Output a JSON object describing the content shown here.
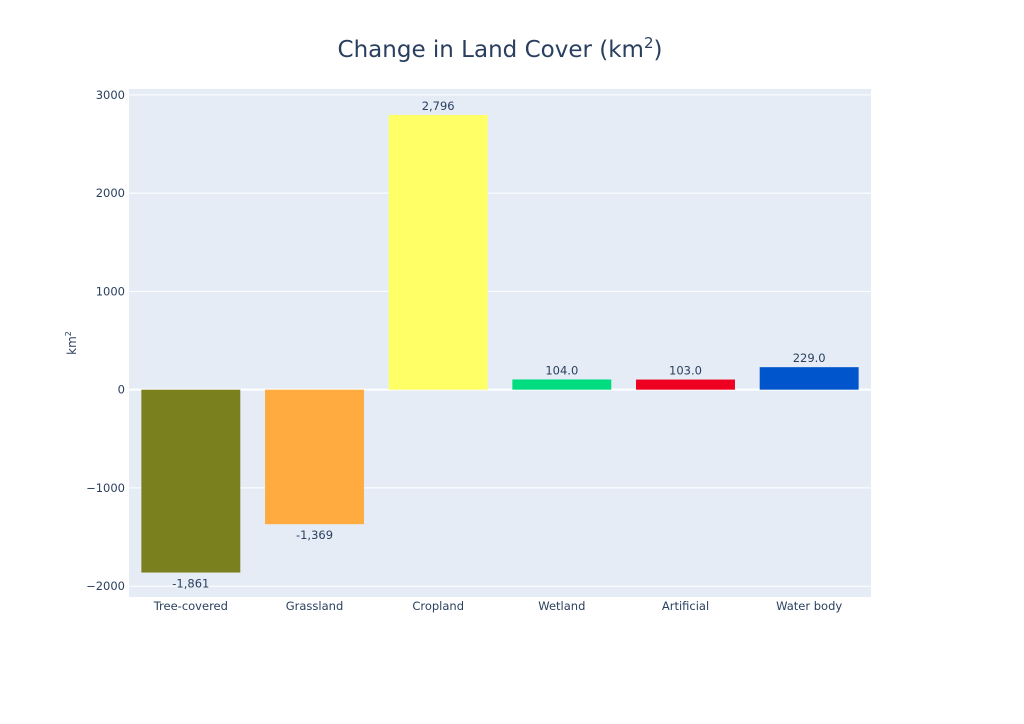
{
  "chart_data": {
    "type": "bar",
    "title": "Change in Land Cover (km",
    "title_sup": "2",
    "title_end": ")",
    "ylabel": "km",
    "ylabel_sup": "2",
    "xlabel": "",
    "categories": [
      "Tree-covered",
      "Grassland",
      "Cropland",
      "Wetland",
      "Artificial",
      "Water body"
    ],
    "values": [
      -1861,
      -1369,
      2796,
      104,
      103,
      229
    ],
    "value_labels": [
      "-1,861",
      "-1,369",
      "2,796",
      "104.0",
      "103.0",
      "229.0"
    ],
    "colors": [
      "#7a801e",
      "#ffab40",
      "#ffff66",
      "#00dd80",
      "#ee0020",
      "#0055cc"
    ],
    "ylim": [
      -2110,
      3060
    ],
    "yticks": [
      -2000,
      -1000,
      0,
      1000,
      2000,
      3000
    ],
    "ytick_labels": [
      "−2000",
      "−1000",
      "0",
      "1000",
      "2000",
      "3000"
    ],
    "grid": true,
    "legend": "none",
    "plot_background": "#e5ecf6"
  }
}
